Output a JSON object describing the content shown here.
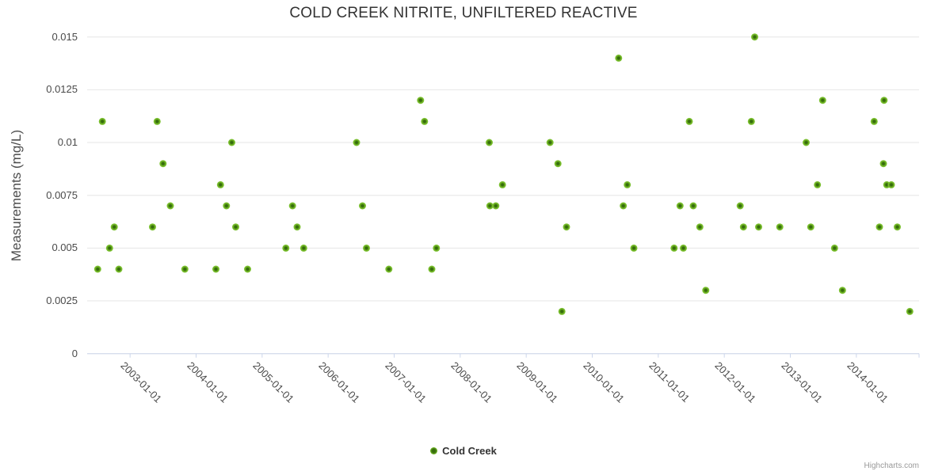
{
  "title": "COLD CREEK NITRITE, UNFILTERED REACTIVE",
  "legend": {
    "label": "Cold Creek"
  },
  "credits": "Highcharts.com",
  "colors": {
    "marker_outer": "#85c93e",
    "marker_mid": "#6fb322",
    "marker_center": "#356c0c",
    "gridline": "#e6e6e6",
    "axis_line": "#ccd6eb",
    "title_text": "#333333",
    "label_text": "#4a4a4a",
    "credits_text": "#999999"
  },
  "chart_data": {
    "type": "scatter",
    "title": "COLD CREEK NITRITE, UNFILTERED REACTIVE",
    "xlabel": "",
    "ylabel": "Measurements (mg/L)",
    "ylim": [
      0,
      0.015
    ],
    "xlim": [
      2002.35,
      2014.95
    ],
    "x_unit": "decimal_year",
    "grid": "horizontal",
    "legend_position": "bottom-center",
    "y_ticks": [
      {
        "v": 0,
        "label": "0"
      },
      {
        "v": 0.0025,
        "label": "0.0025"
      },
      {
        "v": 0.005,
        "label": "0.005"
      },
      {
        "v": 0.0075,
        "label": "0.0075"
      },
      {
        "v": 0.01,
        "label": "0.01"
      },
      {
        "v": 0.0125,
        "label": "0.0125"
      },
      {
        "v": 0.015,
        "label": "0.015"
      }
    ],
    "x_ticks": [
      {
        "v": 2003,
        "label": "2003-01-01"
      },
      {
        "v": 2004,
        "label": "2004-01-01"
      },
      {
        "v": 2005,
        "label": "2005-01-01"
      },
      {
        "v": 2006,
        "label": "2006-01-01"
      },
      {
        "v": 2007,
        "label": "2007-01-01"
      },
      {
        "v": 2008,
        "label": "2008-01-01"
      },
      {
        "v": 2009,
        "label": "2009-01-01"
      },
      {
        "v": 2010,
        "label": "2010-01-01"
      },
      {
        "v": 2011,
        "label": "2011-01-01"
      },
      {
        "v": 2012,
        "label": "2012-01-01"
      },
      {
        "v": 2013,
        "label": "2013-01-01"
      },
      {
        "v": 2014,
        "label": "2014-01-01"
      }
    ],
    "series": [
      {
        "name": "Cold Creek",
        "points": [
          [
            2002.51,
            0.004
          ],
          [
            2002.58,
            0.011
          ],
          [
            2002.69,
            0.005
          ],
          [
            2002.76,
            0.006
          ],
          [
            2002.83,
            0.004
          ],
          [
            2003.34,
            0.006
          ],
          [
            2003.41,
            0.011
          ],
          [
            2003.5,
            0.009
          ],
          [
            2003.61,
            0.007
          ],
          [
            2003.83,
            0.004
          ],
          [
            2004.3,
            0.004
          ],
          [
            2004.37,
            0.008
          ],
          [
            2004.46,
            0.007
          ],
          [
            2004.54,
            0.01
          ],
          [
            2004.6,
            0.006
          ],
          [
            2004.78,
            0.004
          ],
          [
            2005.36,
            0.005
          ],
          [
            2005.46,
            0.007
          ],
          [
            2005.53,
            0.006
          ],
          [
            2005.63,
            0.005
          ],
          [
            2006.43,
            0.01
          ],
          [
            2006.52,
            0.007
          ],
          [
            2006.58,
            0.005
          ],
          [
            2006.92,
            0.004
          ],
          [
            2007.4,
            0.012
          ],
          [
            2007.46,
            0.011
          ],
          [
            2007.57,
            0.004
          ],
          [
            2007.64,
            0.005
          ],
          [
            2008.44,
            0.01
          ],
          [
            2008.45,
            0.007
          ],
          [
            2008.54,
            0.007
          ],
          [
            2008.64,
            0.008
          ],
          [
            2009.36,
            0.01
          ],
          [
            2009.48,
            0.009
          ],
          [
            2009.54,
            0.002
          ],
          [
            2009.61,
            0.006
          ],
          [
            2010.4,
            0.014
          ],
          [
            2010.47,
            0.007
          ],
          [
            2010.53,
            0.008
          ],
          [
            2010.63,
            0.005
          ],
          [
            2011.24,
            0.005
          ],
          [
            2011.33,
            0.007
          ],
          [
            2011.38,
            0.005
          ],
          [
            2011.47,
            0.011
          ],
          [
            2011.53,
            0.007
          ],
          [
            2011.63,
            0.006
          ],
          [
            2011.72,
            0.003
          ],
          [
            2012.24,
            0.007
          ],
          [
            2012.29,
            0.006
          ],
          [
            2012.41,
            0.011
          ],
          [
            2012.46,
            0.015
          ],
          [
            2012.52,
            0.006
          ],
          [
            2012.84,
            0.006
          ],
          [
            2013.24,
            0.01
          ],
          [
            2013.31,
            0.006
          ],
          [
            2013.41,
            0.008
          ],
          [
            2013.49,
            0.012
          ],
          [
            2013.67,
            0.005
          ],
          [
            2013.79,
            0.003
          ],
          [
            2014.27,
            0.011
          ],
          [
            2014.35,
            0.006
          ],
          [
            2014.41,
            0.009
          ],
          [
            2014.42,
            0.012
          ],
          [
            2014.46,
            0.008
          ],
          [
            2014.53,
            0.008
          ],
          [
            2014.62,
            0.006
          ],
          [
            2014.81,
            0.002
          ]
        ]
      }
    ]
  }
}
